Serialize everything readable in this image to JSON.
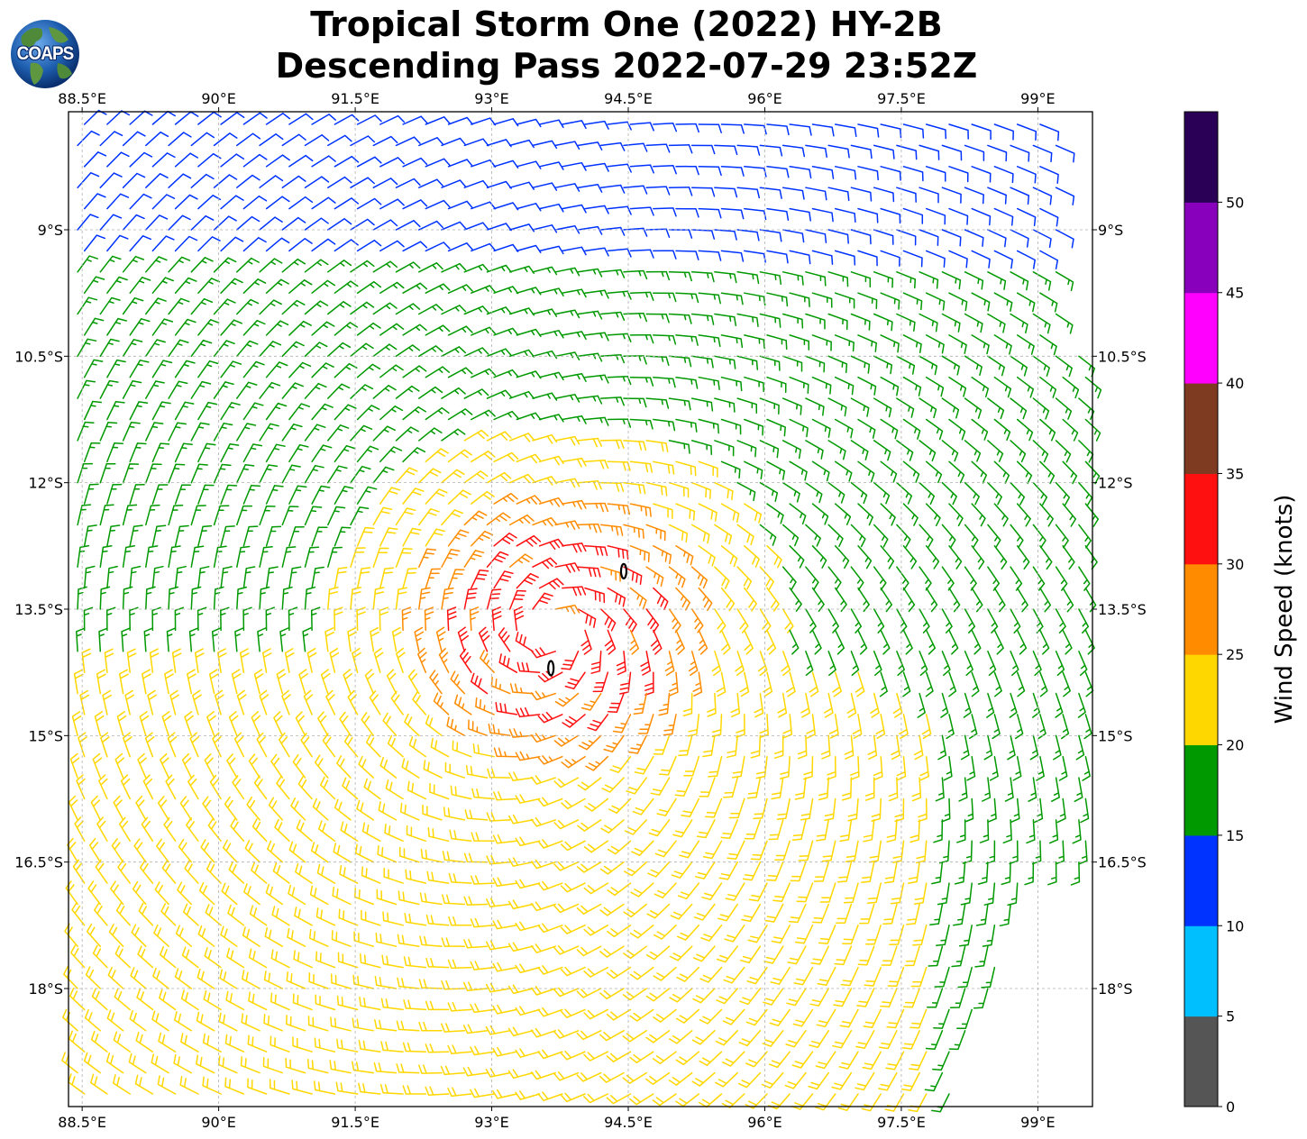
{
  "title": {
    "line1": "Tropical Storm One (2022) HY-2B",
    "line2": "Descending Pass 2022-07-29 23:52Z"
  },
  "logo": {
    "text": "COAPS",
    "icon": "globe-logo-icon"
  },
  "map": {
    "lon_range": [
      88.35,
      99.6
    ],
    "lat_range": [
      -19.4,
      -7.6
    ],
    "lon_ticks": [
      88.5,
      90,
      91.5,
      93,
      94.5,
      96,
      97.5,
      99
    ],
    "lat_ticks": [
      -9,
      -10.5,
      -12,
      -13.5,
      -15,
      -16.5,
      -18
    ],
    "lon_tick_labels": [
      "88.5°E",
      "90°E",
      "91.5°E",
      "93°E",
      "94.5°E",
      "96°E",
      "97.5°E",
      "99°E"
    ],
    "lat_tick_labels": [
      "9°S",
      "10.5°S",
      "12°S",
      "13.5°S",
      "15°S",
      "16.5°S",
      "18°S"
    ],
    "grid": "dashed gray",
    "storm_center": {
      "lon": 93.7,
      "lat": -13.7
    },
    "barb_grid_spacing_deg": 0.25,
    "land_features": [
      {
        "name": "small island",
        "lon": 94.45,
        "lat": -13.05
      },
      {
        "name": "small island",
        "lon": 93.65,
        "lat": -14.2
      }
    ]
  },
  "colorbar": {
    "label": "Wind Speed (knots)",
    "bounds": [
      0,
      5,
      10,
      15,
      20,
      25,
      30,
      35,
      40,
      45,
      50,
      55
    ],
    "tick_labels": [
      "0",
      "5",
      "10",
      "15",
      "20",
      "25",
      "30",
      "35",
      "40",
      "45",
      "50"
    ],
    "colors": [
      "#555555",
      "#00bfff",
      "#0033ff",
      "#009900",
      "#ffd700",
      "#ff8c00",
      "#ff1010",
      "#7f3a22",
      "#ff00ff",
      "#8800bb",
      "#2a0057"
    ]
  },
  "chart_data": {
    "type": "wind_barbs",
    "title": "Tropical Storm One (2022) HY-2B Descending Pass 2022-07-29 23:52Z",
    "xlabel": "",
    "ylabel": "",
    "xlim": [
      88.35,
      99.6
    ],
    "ylim": [
      -19.4,
      -7.6
    ],
    "units": "knots",
    "vortex": {
      "center_lon": 93.7,
      "center_lat": -13.7,
      "max_wind_kt": 33,
      "rotation": "clockwise"
    },
    "approx_wind_zones_kt": [
      {
        "region": "eyewall ring",
        "speed": "30-35"
      },
      {
        "region": "inner core",
        "speed": "25-30"
      },
      {
        "region": "southern half",
        "speed": "20-25"
      },
      {
        "region": "outer ring",
        "speed": "15-20"
      },
      {
        "region": "north / northwest",
        "speed": "10-15"
      },
      {
        "region": "far north near 91°E 9.5°S",
        "speed": "5-10"
      }
    ]
  }
}
